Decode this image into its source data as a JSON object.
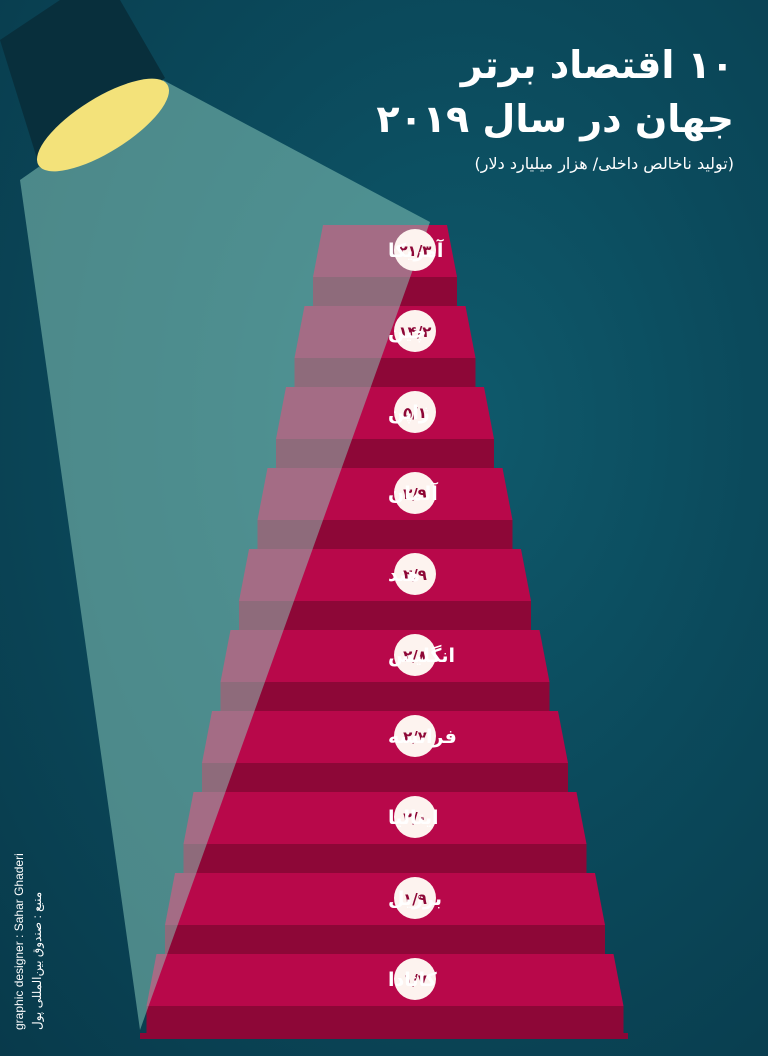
{
  "title": {
    "line1": "۱۰ اقتصاد برتر",
    "line2": "جهان در سال ۲۰۱۹"
  },
  "subtitle": "(تولید ناخالص داخلی/ هزار میلیارد دلار)",
  "credits": {
    "designer": "graphic designer : Sahar Ghaderi",
    "source": "منبع : صندوق بین‌المللی پول"
  },
  "colors": {
    "background": "#0b4a5c",
    "step_top": "#b8084a",
    "step_riser": "#8d0737",
    "spotlight_beam": "#8fcfbf",
    "lamp_glow": "#f3e27a",
    "lamp_body": "#082f3c",
    "value_badge": "#fdf3ef"
  },
  "chart_data": {
    "type": "bar",
    "title": "۱۰ اقتصاد برتر جهان در سال ۲۰۱۹",
    "subtitle": "(تولید ناخالص داخلی/ هزار میلیارد دلار)",
    "categories": [
      "آمریکا",
      "چین",
      "ژاپن",
      "آلمان",
      "هند",
      "انگلیس",
      "فرانسه",
      "ایتالیا",
      "برزیل",
      "کانادا"
    ],
    "values": [
      21.3,
      14.2,
      5.1,
      3.9,
      2.9,
      2.8,
      2.7,
      2.0,
      1.9,
      1.7
    ],
    "value_labels": [
      "۲۱/۳",
      "۱۴/۲",
      "۵/۱",
      "۳/۹",
      "۲/۹",
      "۲/۸",
      "۲/۷",
      "۲/۰",
      "۱/۹",
      "۱/۷"
    ],
    "orientation": "stairs, largest at top",
    "grid": false,
    "legend": "none"
  }
}
